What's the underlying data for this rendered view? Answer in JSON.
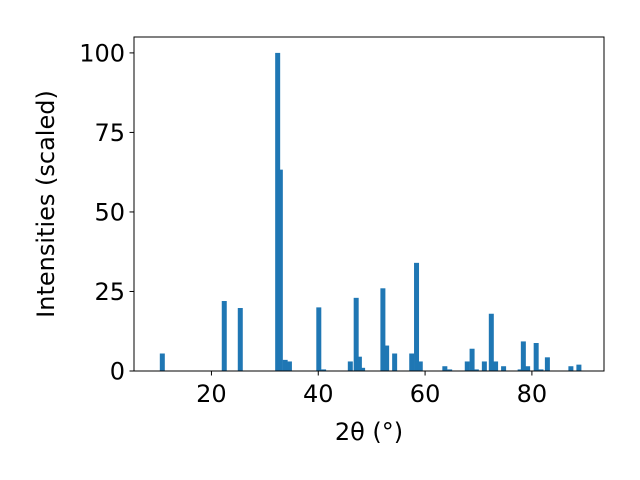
{
  "chart_data": {
    "type": "bar",
    "xlabel": "2θ (°)",
    "ylabel": "Intensities (scaled)",
    "xlim": [
      5.5,
      93.5
    ],
    "ylim": [
      0,
      105
    ],
    "xticks": [
      20,
      40,
      60,
      80
    ],
    "yticks": [
      0,
      25,
      50,
      75,
      100
    ],
    "bar_color": "#1f77b4",
    "grid": false,
    "x": [
      10.8,
      22.4,
      25.4,
      32.4,
      32.9,
      33.8,
      34.6,
      40.1,
      41.0,
      46.0,
      47.1,
      47.7,
      48.3,
      52.1,
      52.8,
      54.3,
      57.5,
      58.4,
      59.1,
      63.7,
      64.6,
      67.9,
      68.8,
      69.6,
      71.1,
      72.4,
      73.2,
      74.7,
      77.8,
      78.4,
      79.2,
      80.8,
      81.7,
      82.9,
      87.3,
      88.8
    ],
    "values": [
      5.5,
      22,
      19.8,
      100,
      63.3,
      3.5,
      3,
      20,
      0.5,
      3,
      23,
      4.5,
      1,
      26,
      8,
      5.5,
      5.5,
      34,
      3,
      1.5,
      0.5,
      3,
      7,
      0.5,
      3,
      18,
      3,
      1.5,
      0.5,
      9.3,
      1.5,
      8.8,
      0.5,
      4.3,
      1.5,
      2
    ]
  }
}
